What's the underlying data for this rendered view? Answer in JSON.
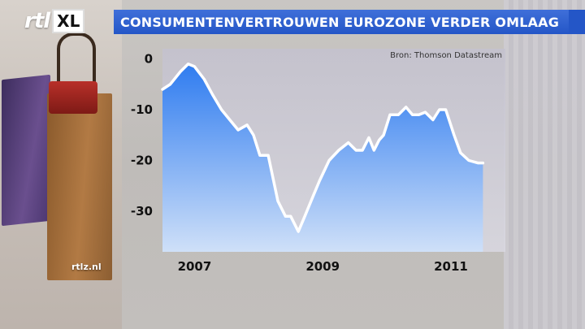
{
  "logo": {
    "rtl": "rtl",
    "xl": "XL"
  },
  "header": {
    "title": "CONSUMENTENVERTROUWEN EUROZONE VERDER OMLAAG"
  },
  "source_note": "Bron: Thomson Datastream",
  "channel_tag": "rtlz.nl",
  "colors": {
    "title_bar": "#2456c7",
    "area_top": "#2f7cf0",
    "area_bottom": "#cfe0f8",
    "line": "#ffffff"
  },
  "chart_data": {
    "type": "area",
    "title": "CONSUMENTENVERTROUWEN EUROZONE VERDER OMLAAG",
    "xlabel": "",
    "ylabel": "",
    "xlim": [
      2006.5,
      2011.85
    ],
    "ylim": [
      -38,
      2
    ],
    "yticks": [
      0,
      -10,
      -20,
      -30
    ],
    "ytick_labels": [
      "0",
      "-10",
      "-20",
      "-30"
    ],
    "xticks": [
      2007,
      2009,
      2011
    ],
    "xtick_labels": [
      "2007",
      "2009",
      "2011"
    ],
    "grid": false,
    "series": [
      {
        "name": "",
        "x": [
          2006.5,
          2006.62,
          2006.78,
          2006.9,
          2007.0,
          2007.15,
          2007.28,
          2007.42,
          2007.55,
          2007.68,
          2007.82,
          2007.92,
          2008.02,
          2008.15,
          2008.3,
          2008.42,
          2008.5,
          2008.62,
          2008.72,
          2008.85,
          2008.95,
          2009.1,
          2009.25,
          2009.4,
          2009.52,
          2009.62,
          2009.72,
          2009.8,
          2009.88,
          2009.95,
          2010.05,
          2010.18,
          2010.3,
          2010.4,
          2010.5,
          2010.6,
          2010.72,
          2010.82,
          2010.92,
          2011.05,
          2011.15,
          2011.28,
          2011.42,
          2011.5
        ],
        "values": [
          -6,
          -5,
          -2.5,
          -1,
          -1.5,
          -4,
          -7,
          -10,
          -12,
          -14,
          -13,
          -15,
          -19,
          -19,
          -28,
          -31,
          -31,
          -34,
          -31,
          -27,
          -24,
          -20,
          -18,
          -16.5,
          -18,
          -18,
          -15.5,
          -18,
          -16,
          -15,
          -11,
          -11,
          -9.5,
          -11,
          -11,
          -10.5,
          -12,
          -10,
          -10,
          -15,
          -18.5,
          -20,
          -20.5,
          -20.5
        ]
      }
    ]
  }
}
